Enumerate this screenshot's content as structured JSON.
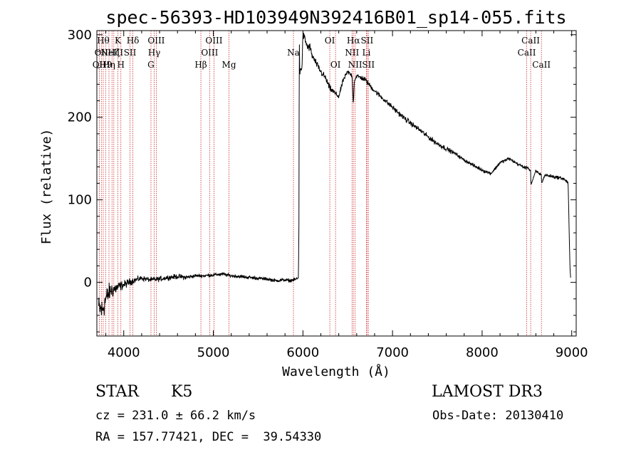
{
  "chart_data": {
    "type": "line",
    "title": "spec-56393-HD103949N392416B01_sp14-055.fits",
    "xlabel": "Wavelength (Å)",
    "ylabel": "Flux (relative)",
    "xlim": [
      3700,
      9050
    ],
    "ylim": [
      -65,
      305
    ],
    "xticks": [
      4000,
      5000,
      6000,
      7000,
      8000,
      9000
    ],
    "xtick_labels": [
      "4000",
      "5000",
      "6000",
      "7000",
      "8000",
      "9000"
    ],
    "yticks": [
      0,
      100,
      200,
      300
    ],
    "ytick_labels": [
      "0",
      "100",
      "200",
      "300"
    ],
    "series": [
      {
        "name": "spectrum",
        "x": [
          3720,
          3760,
          3800,
          3850,
          3900,
          3950,
          4000,
          4100,
          4200,
          4300,
          4400,
          4500,
          4600,
          4700,
          4800,
          4900,
          5000,
          5100,
          5200,
          5300,
          5400,
          5500,
          5600,
          5700,
          5800,
          5850,
          5890,
          5900,
          5950,
          5955,
          5960,
          5965,
          5975,
          5990,
          6000,
          6020,
          6050,
          6080,
          6100,
          6150,
          6200,
          6250,
          6300,
          6350,
          6400,
          6450,
          6500,
          6550,
          6562,
          6575,
          6600,
          6650,
          6700,
          6750,
          6800,
          6900,
          7000,
          7100,
          7200,
          7300,
          7400,
          7500,
          7600,
          7700,
          7800,
          7900,
          8000,
          8100,
          8200,
          8300,
          8400,
          8498,
          8500,
          8542,
          8545,
          8600,
          8662,
          8665,
          8700,
          8800,
          8900,
          8950,
          8960,
          8980,
          8990
        ],
        "y": [
          -30,
          -35,
          -20,
          -10,
          -8,
          -5,
          -3,
          2,
          5,
          3,
          4,
          6,
          7,
          6,
          8,
          8,
          9,
          10,
          8,
          7,
          6,
          5,
          4,
          2,
          3,
          2,
          3,
          3,
          5,
          70,
          300,
          250,
          260,
          260,
          300,
          295,
          285,
          285,
          275,
          265,
          255,
          248,
          235,
          230,
          225,
          245,
          255,
          250,
          215,
          245,
          250,
          248,
          245,
          238,
          232,
          222,
          212,
          202,
          193,
          185,
          176,
          168,
          162,
          156,
          148,
          142,
          136,
          132,
          145,
          150,
          143,
          138,
          140,
          135,
          118,
          135,
          130,
          120,
          130,
          128,
          126,
          122,
          120,
          20,
          2
        ],
        "noise": [
          14,
          16,
          14,
          10,
          9,
          6,
          5,
          4,
          3,
          3,
          3,
          3,
          3,
          3,
          2,
          2,
          2,
          2,
          2,
          2,
          2,
          2,
          2,
          2,
          2,
          2,
          2,
          2,
          2,
          0,
          4,
          5,
          5,
          5,
          5,
          5,
          5,
          5,
          4,
          4,
          4,
          4,
          4,
          3,
          3,
          3,
          3,
          3,
          0,
          3,
          3,
          3,
          3,
          3,
          3,
          3,
          3,
          3,
          3,
          3,
          3,
          3,
          3,
          2,
          2,
          2,
          2,
          2,
          2,
          2,
          2,
          2,
          0,
          2,
          0,
          2,
          2,
          0,
          2,
          2,
          2,
          2,
          2,
          0,
          0
        ]
      }
    ],
    "lines": [
      {
        "w": 3727,
        "label": "OII",
        "row": 2
      },
      {
        "w": 3750,
        "label": "OII",
        "row": 1
      },
      {
        "w": 3771,
        "label": "Hθ",
        "row": 0
      },
      {
        "w": 3798,
        "label": "H9",
        "row": 2
      },
      {
        "w": 3835,
        "label": "Hη",
        "row": 2
      },
      {
        "w": 3869,
        "label": "NeIII",
        "row": 1
      },
      {
        "w": 3889,
        "label": "Hζ",
        "row": 1
      },
      {
        "w": 3934,
        "label": "K",
        "row": 0
      },
      {
        "w": 3968,
        "label": "H",
        "row": 2
      },
      {
        "w": 4070,
        "label": "SII",
        "row": 1
      },
      {
        "w": 4102,
        "label": "Hδ",
        "row": 0
      },
      {
        "w": 4304,
        "label": "G",
        "row": 2
      },
      {
        "w": 4340,
        "label": "Hγ",
        "row": 1
      },
      {
        "w": 4363,
        "label": "OIII",
        "row": 0
      },
      {
        "w": 4861,
        "label": "Hβ",
        "row": 2
      },
      {
        "w": 4959,
        "label": "OIII",
        "row": 1
      },
      {
        "w": 5007,
        "label": "OIII",
        "row": 0
      },
      {
        "w": 5175,
        "label": "Mg",
        "row": 2
      },
      {
        "w": 5894,
        "label": "Na",
        "row": 1
      },
      {
        "w": 6300,
        "label": "OI",
        "row": 0
      },
      {
        "w": 6364,
        "label": "OI",
        "row": 2
      },
      {
        "w": 6548,
        "label": "NII",
        "row": 1
      },
      {
        "w": 6563,
        "label": "Hα",
        "row": 0
      },
      {
        "w": 6583,
        "label": "NII",
        "row": 2
      },
      {
        "w": 6708,
        "label": "Li",
        "row": 1
      },
      {
        "w": 6716,
        "label": "SII",
        "row": 0
      },
      {
        "w": 6731,
        "label": "SII",
        "row": 2
      },
      {
        "w": 8498,
        "label": "CaII",
        "row": 1
      },
      {
        "w": 8542,
        "label": "CaII",
        "row": 0
      },
      {
        "w": 8662,
        "label": "CaII",
        "row": 2
      }
    ]
  },
  "info": {
    "object_class": "STAR",
    "subclass": "K5",
    "survey": "LAMOST DR3",
    "cz_line": "cz = 231.0 ± 66.2 km/s",
    "obs_date_line": "Obs-Date: 20130410",
    "coords_line": "RA = 157.77421, DEC =  39.54330"
  },
  "colors": {
    "spectrum": "#000000",
    "line_markers": "#cc2a2a",
    "axes": "#000000",
    "background": "#ffffff"
  }
}
